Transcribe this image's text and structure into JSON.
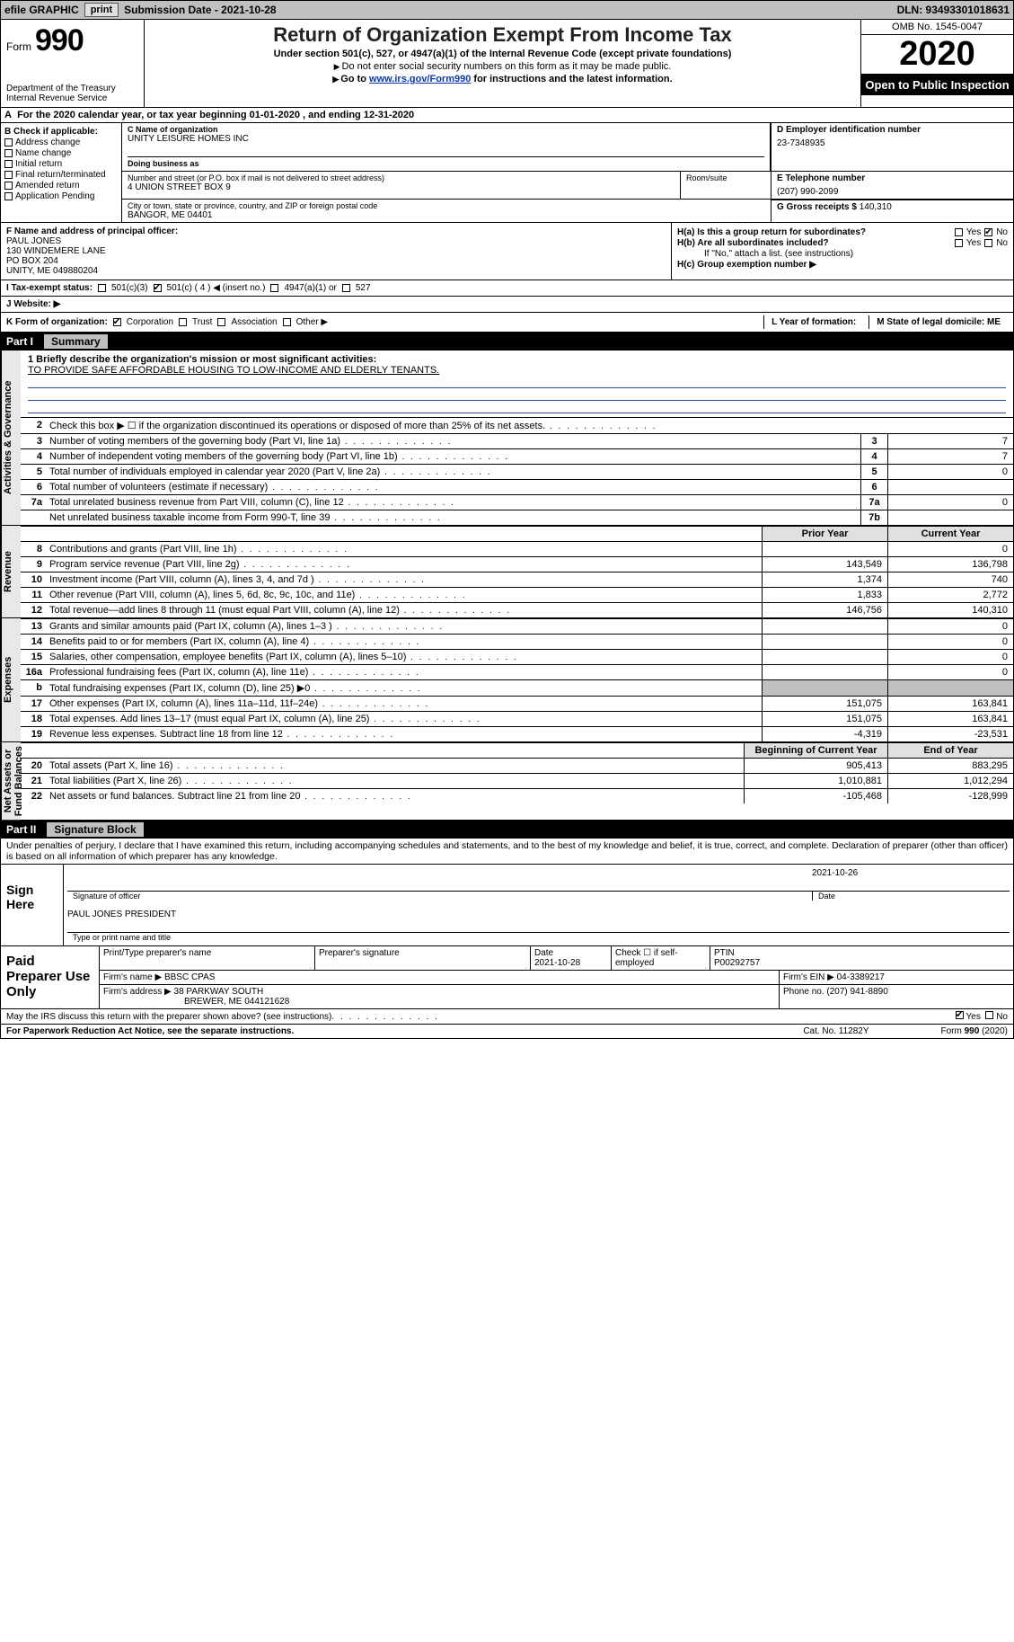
{
  "topbar": {
    "efile_label": "efile GRAPHIC",
    "print_btn": "print",
    "submission_label": "Submission Date - 2021-10-28",
    "dln_label": "DLN: 93493301018631"
  },
  "header": {
    "form_prefix": "Form",
    "form_number": "990",
    "dept": "Department of the Treasury\nInternal Revenue Service",
    "title": "Return of Organization Exempt From Income Tax",
    "subtitle": "Under section 501(c), 527, or 4947(a)(1) of the Internal Revenue Code (except private foundations)",
    "note1": "Do not enter social security numbers on this form as it may be made public.",
    "note2_pre": "Go to ",
    "note2_link": "www.irs.gov/Form990",
    "note2_post": " for instructions and the latest information.",
    "omb": "OMB No. 1545-0047",
    "year": "2020",
    "inspection": "Open to Public Inspection"
  },
  "line_a": "For the 2020 calendar year, or tax year beginning 01-01-2020   , and ending 12-31-2020",
  "section_b": {
    "header": "B Check if applicable:",
    "items": [
      "Address change",
      "Name change",
      "Initial return",
      "Final return/terminated",
      "Amended return",
      "Application Pending"
    ]
  },
  "org": {
    "name_label": "C Name of organization",
    "name": "UNITY LEISURE HOMES INC",
    "dba_label": "Doing business as",
    "dba": "",
    "street_label": "Number and street (or P.O. box if mail is not delivered to street address)",
    "street": "4 UNION STREET BOX 9",
    "room_label": "Room/suite",
    "city_label": "City or town, state or province, country, and ZIP or foreign postal code",
    "city": "BANGOR, ME  04401"
  },
  "d_block": {
    "label": "D Employer identification number",
    "value": "23-7348935"
  },
  "e_block": {
    "label": "E Telephone number",
    "value": "(207) 990-2099"
  },
  "g_block": {
    "label": "G Gross receipts $ ",
    "value": "140,310"
  },
  "f_block": {
    "label": "F  Name and address of principal officer:",
    "name": "PAUL JONES",
    "addr1": "130 WINDEMERE LANE",
    "addr2": "PO BOX 204",
    "addr3": "UNITY, ME  049880204"
  },
  "h_block": {
    "a_label": "H(a)  Is this a group return for subordinates?",
    "a_yes": "Yes",
    "a_no": "No",
    "b_label": "H(b)  Are all subordinates included?",
    "b_yes": "Yes",
    "b_no": "No",
    "b_note": "If \"No,\" attach a list. (see instructions)",
    "c_label": "H(c)  Group exemption number ▶"
  },
  "i_block": {
    "label": "I   Tax-exempt status:",
    "o1": "501(c)(3)",
    "o2": "501(c) ( 4 ) ◀ (insert no.)",
    "o3": "4947(a)(1) or",
    "o4": "527"
  },
  "j_block": {
    "label": "J   Website: ▶",
    "value": ""
  },
  "k_block": {
    "label": "K Form of organization:",
    "o1": "Corporation",
    "o2": "Trust",
    "o3": "Association",
    "o4": "Other ▶"
  },
  "l_block": {
    "label": "L Year of formation:",
    "value": ""
  },
  "m_block": {
    "label": "M State of legal domicile: ME"
  },
  "part1": {
    "label": "Part I",
    "title": "Summary"
  },
  "mission": {
    "q": "1  Briefly describe the organization's mission or most significant activities:",
    "text": "TO PROVIDE SAFE AFFORDABLE HOUSING TO LOW-INCOME AND ELDERLY TENANTS."
  },
  "gov_lines": [
    {
      "n": "2",
      "desc": "Check this box ▶ ☐  if the organization discontinued its operations or disposed of more than 25% of its net assets.",
      "box": "",
      "v": ""
    },
    {
      "n": "3",
      "desc": "Number of voting members of the governing body (Part VI, line 1a)",
      "box": "3",
      "v": "7"
    },
    {
      "n": "4",
      "desc": "Number of independent voting members of the governing body (Part VI, line 1b)",
      "box": "4",
      "v": "7"
    },
    {
      "n": "5",
      "desc": "Total number of individuals employed in calendar year 2020 (Part V, line 2a)",
      "box": "5",
      "v": "0"
    },
    {
      "n": "6",
      "desc": "Total number of volunteers (estimate if necessary)",
      "box": "6",
      "v": ""
    },
    {
      "n": "7a",
      "desc": "Total unrelated business revenue from Part VIII, column (C), line 12",
      "box": "7a",
      "v": "0"
    },
    {
      "n": "",
      "desc": "Net unrelated business taxable income from Form 990-T, line 39",
      "box": "7b",
      "v": ""
    }
  ],
  "col_headers": {
    "prior": "Prior Year",
    "current": "Current Year"
  },
  "revenue_lines": [
    {
      "n": "8",
      "desc": "Contributions and grants (Part VIII, line 1h)",
      "p": "",
      "c": "0"
    },
    {
      "n": "9",
      "desc": "Program service revenue (Part VIII, line 2g)",
      "p": "143,549",
      "c": "136,798"
    },
    {
      "n": "10",
      "desc": "Investment income (Part VIII, column (A), lines 3, 4, and 7d )",
      "p": "1,374",
      "c": "740"
    },
    {
      "n": "11",
      "desc": "Other revenue (Part VIII, column (A), lines 5, 6d, 8c, 9c, 10c, and 11e)",
      "p": "1,833",
      "c": "2,772"
    },
    {
      "n": "12",
      "desc": "Total revenue—add lines 8 through 11 (must equal Part VIII, column (A), line 12)",
      "p": "146,756",
      "c": "140,310"
    }
  ],
  "expense_lines": [
    {
      "n": "13",
      "desc": "Grants and similar amounts paid (Part IX, column (A), lines 1–3 )",
      "p": "",
      "c": "0"
    },
    {
      "n": "14",
      "desc": "Benefits paid to or for members (Part IX, column (A), line 4)",
      "p": "",
      "c": "0"
    },
    {
      "n": "15",
      "desc": "Salaries, other compensation, employee benefits (Part IX, column (A), lines 5–10)",
      "p": "",
      "c": "0"
    },
    {
      "n": "16a",
      "desc": "Professional fundraising fees (Part IX, column (A), line 11e)",
      "p": "",
      "c": "0"
    },
    {
      "n": "b",
      "desc": "Total fundraising expenses (Part IX, column (D), line 25) ▶0",
      "p": "grey",
      "c": "grey"
    },
    {
      "n": "17",
      "desc": "Other expenses (Part IX, column (A), lines 11a–11d, 11f–24e)",
      "p": "151,075",
      "c": "163,841"
    },
    {
      "n": "18",
      "desc": "Total expenses. Add lines 13–17 (must equal Part IX, column (A), line 25)",
      "p": "151,075",
      "c": "163,841"
    },
    {
      "n": "19",
      "desc": "Revenue less expenses. Subtract line 18 from line 12",
      "p": "-4,319",
      "c": "-23,531"
    }
  ],
  "na_headers": {
    "prior": "Beginning of Current Year",
    "current": "End of Year"
  },
  "netassets_lines": [
    {
      "n": "20",
      "desc": "Total assets (Part X, line 16)",
      "p": "905,413",
      "c": "883,295"
    },
    {
      "n": "21",
      "desc": "Total liabilities (Part X, line 26)",
      "p": "1,010,881",
      "c": "1,012,294"
    },
    {
      "n": "22",
      "desc": "Net assets or fund balances. Subtract line 21 from line 20",
      "p": "-105,468",
      "c": "-128,999"
    }
  ],
  "vlabels": {
    "gov": "Activities & Governance",
    "rev": "Revenue",
    "exp": "Expenses",
    "na": "Net Assets or\nFund Balances"
  },
  "part2": {
    "label": "Part II",
    "title": "Signature Block"
  },
  "penalties": "Under penalties of perjury, I declare that I have examined this return, including accompanying schedules and statements, and to the best of my knowledge and belief, it is true, correct, and complete. Declaration of preparer (other than officer) is based on all information of which preparer has any knowledge.",
  "sign": {
    "left": "Sign Here",
    "date": "2021-10-26",
    "sig_label": "Signature of officer",
    "date_label": "Date",
    "name": "PAUL JONES  PRESIDENT",
    "name_label": "Type or print name and title"
  },
  "prep": {
    "left": "Paid Preparer Use Only",
    "h1": "Print/Type preparer's name",
    "h2": "Preparer's signature",
    "h3_label": "Date",
    "h3": "2021-10-28",
    "h4": "Check ☐ if self-employed",
    "h5_label": "PTIN",
    "h5": "P00292757",
    "firm_label": "Firm's name    ▶",
    "firm": "BBSC CPAS",
    "ein_label": "Firm's EIN ▶",
    "ein": "04-3389217",
    "addr_label": "Firm's address ▶",
    "addr": "38 PARKWAY SOUTH",
    "addr2": "BREWER, ME  044121628",
    "phone_label": "Phone no.",
    "phone": "(207) 941-8890"
  },
  "discuss": {
    "q": "May the IRS discuss this return with the preparer shown above? (see instructions)",
    "yes": "Yes",
    "no": "No"
  },
  "footer": {
    "left": "For Paperwork Reduction Act Notice, see the separate instructions.",
    "mid": "Cat. No. 11282Y",
    "right": "Form 990 (2020)"
  }
}
